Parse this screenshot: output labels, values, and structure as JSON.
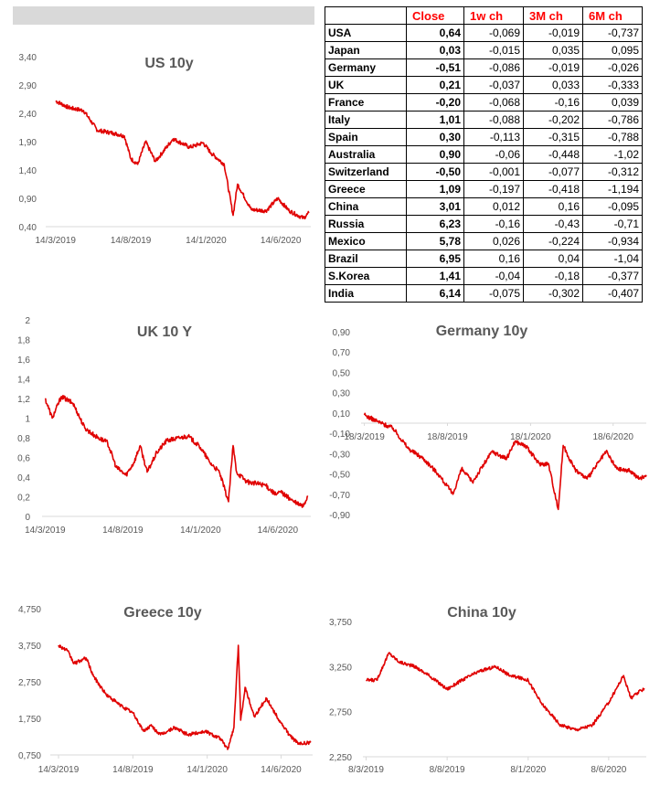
{
  "yield_table": {
    "headers": [
      "",
      "Close",
      "1w ch",
      "3M ch",
      "6M ch"
    ],
    "rows": [
      {
        "country": "USA",
        "close": "0,64",
        "w1": "-0,069",
        "m3": "-0,019",
        "m6": "-0,737"
      },
      {
        "country": "Japan",
        "close": "0,03",
        "w1": "-0,015",
        "m3": "0,035",
        "m6": "0,095"
      },
      {
        "country": "Germany",
        "close": "-0,51",
        "w1": "-0,086",
        "m3": "-0,019",
        "m6": "-0,026"
      },
      {
        "country": "UK",
        "close": "0,21",
        "w1": "-0,037",
        "m3": "0,033",
        "m6": "-0,333"
      },
      {
        "country": "France",
        "close": "-0,20",
        "w1": "-0,068",
        "m3": "-0,16",
        "m6": "0,039"
      },
      {
        "country": "Italy",
        "close": "1,01",
        "w1": "-0,088",
        "m3": "-0,202",
        "m6": "-0,786"
      },
      {
        "country": "Spain",
        "close": "0,30",
        "w1": "-0,113",
        "m3": "-0,315",
        "m6": "-0,788"
      },
      {
        "country": "Australia",
        "close": "0,90",
        "w1": "-0,06",
        "m3": "-0,448",
        "m6": "-1,02"
      },
      {
        "country": "Switzerland",
        "close": "-0,50",
        "w1": "-0,001",
        "m3": "-0,077",
        "m6": "-0,312"
      },
      {
        "country": "Greece",
        "close": "1,09",
        "w1": "-0,197",
        "m3": "-0,418",
        "m6": "-1,194"
      },
      {
        "country": "China",
        "close": "3,01",
        "w1": "0,012",
        "m3": "0,16",
        "m6": "-0,095"
      },
      {
        "country": "Russia",
        "close": "6,23",
        "w1": "-0,16",
        "m3": "-0,43",
        "m6": "-0,71"
      },
      {
        "country": "Mexico",
        "close": "5,78",
        "w1": "0,026",
        "m3": "-0,224",
        "m6": "-0,934"
      },
      {
        "country": "Brazil",
        "close": "6,95",
        "w1": "0,16",
        "m3": "0,04",
        "m6": "-1,04"
      },
      {
        "country": "S.Korea",
        "close": "1,41",
        "w1": "-0,04",
        "m3": "-0,18",
        "m6": "-0,377"
      },
      {
        "country": "India",
        "close": "6,14",
        "w1": "-0,075",
        "m3": "-0,302",
        "m6": "-0,407"
      }
    ]
  },
  "colors": {
    "line": "#e00000",
    "header_text": "#ff0000",
    "top_bar": "#d9d9d9",
    "axis": "#d9d9d9"
  },
  "chart_data": [
    {
      "id": "us",
      "type": "line",
      "title": "US 10y",
      "series": [
        {
          "color": "#e00000",
          "x": [
            "2019-03-14",
            "2019-04-10",
            "2019-05-10",
            "2019-06-07",
            "2019-07-10",
            "2019-08-01",
            "2019-08-14",
            "2019-08-28",
            "2019-09-13",
            "2019-10-03",
            "2019-11-08",
            "2019-12-12",
            "2020-01-08",
            "2020-01-24",
            "2020-02-20",
            "2020-03-09",
            "2020-03-18",
            "2020-04-15",
            "2020-05-15",
            "2020-06-08",
            "2020-07-01",
            "2020-07-30",
            "2020-08-10"
          ],
          "y": [
            2.62,
            2.5,
            2.45,
            2.1,
            2.05,
            2.0,
            1.6,
            1.5,
            1.9,
            1.55,
            1.95,
            1.8,
            1.88,
            1.7,
            1.5,
            0.6,
            1.15,
            0.7,
            0.68,
            0.9,
            0.68,
            0.55,
            0.64
          ]
        }
      ],
      "yticks": [
        "0,40",
        "0,90",
        "1,40",
        "1,90",
        "2,40",
        "2,90",
        "3,40"
      ],
      "ylim": [
        0.4,
        3.4
      ],
      "xticks": [
        {
          "label": "14/3/2019",
          "x": "2019-03-14"
        },
        {
          "label": "14/8/2019",
          "x": "2019-08-14"
        },
        {
          "label": "14/1/2020",
          "x": "2020-01-14"
        },
        {
          "label": "14/6/2020",
          "x": "2020-06-14"
        }
      ],
      "xlim": [
        "2019-02-22",
        "2020-08-14"
      ]
    },
    {
      "id": "uk",
      "type": "line",
      "title": "UK 10 Y",
      "series": [
        {
          "color": "#e00000",
          "x": [
            "2019-03-14",
            "2019-03-28",
            "2019-04-15",
            "2019-05-08",
            "2019-05-31",
            "2019-06-20",
            "2019-07-15",
            "2019-08-01",
            "2019-08-20",
            "2019-09-05",
            "2019-09-17",
            "2019-10-01",
            "2019-10-20",
            "2019-11-08",
            "2019-12-05",
            "2019-12-20",
            "2020-01-14",
            "2020-02-01",
            "2020-02-20",
            "2020-03-09",
            "2020-03-18",
            "2020-03-25",
            "2020-04-15",
            "2020-05-20",
            "2020-06-10",
            "2020-06-20",
            "2020-07-15",
            "2020-08-03",
            "2020-08-12"
          ],
          "y": [
            1.2,
            1.0,
            1.22,
            1.15,
            0.9,
            0.82,
            0.75,
            0.5,
            0.42,
            0.55,
            0.72,
            0.45,
            0.65,
            0.77,
            0.8,
            0.82,
            0.7,
            0.55,
            0.45,
            0.15,
            0.72,
            0.45,
            0.35,
            0.32,
            0.22,
            0.25,
            0.15,
            0.1,
            0.21
          ]
        }
      ],
      "yticks": [
        "0",
        "0,2",
        "0,4",
        "0,6",
        "0,8",
        "1",
        "1,2",
        "1,4",
        "1,6",
        "1,8",
        "2"
      ],
      "ylim": [
        0,
        2
      ],
      "xticks": [
        {
          "label": "14/3/2019",
          "x": "2019-03-14"
        },
        {
          "label": "14/8/2019",
          "x": "2019-08-14"
        },
        {
          "label": "14/1/2020",
          "x": "2020-01-14"
        },
        {
          "label": "14/6/2020",
          "x": "2020-06-14"
        }
      ],
      "xlim": [
        "2019-03-08",
        "2020-08-18"
      ]
    },
    {
      "id": "germany",
      "type": "line",
      "title": "Germany 10y",
      "series": [
        {
          "color": "#e00000",
          "x": [
            "2019-03-18",
            "2019-04-10",
            "2019-05-10",
            "2019-06-07",
            "2019-07-05",
            "2019-08-01",
            "2019-08-28",
            "2019-09-13",
            "2019-10-03",
            "2019-11-08",
            "2019-12-05",
            "2019-12-20",
            "2020-01-08",
            "2020-02-03",
            "2020-02-20",
            "2020-03-09",
            "2020-03-18",
            "2020-04-08",
            "2020-05-01",
            "2020-06-05",
            "2020-06-25",
            "2020-07-20",
            "2020-08-05",
            "2020-08-18"
          ],
          "y": [
            0.08,
            0.02,
            -0.05,
            -0.25,
            -0.35,
            -0.5,
            -0.7,
            -0.45,
            -0.58,
            -0.28,
            -0.35,
            -0.18,
            -0.22,
            -0.4,
            -0.4,
            -0.85,
            -0.22,
            -0.45,
            -0.55,
            -0.28,
            -0.45,
            -0.47,
            -0.55,
            -0.51
          ]
        }
      ],
      "yticks": [
        "-0,90",
        "-0,70",
        "-0,50",
        "-0,30",
        "-0,10",
        "0,10",
        "0,30",
        "0,50",
        "0,70",
        "0,90"
      ],
      "ylim": [
        -0.9,
        0.9
      ],
      "xticks": [
        {
          "label": "18/3/2019",
          "x": "2019-03-18"
        },
        {
          "label": "18/8/2019",
          "x": "2019-08-18"
        },
        {
          "label": "18/1/2020",
          "x": "2020-01-18"
        },
        {
          "label": "18/6/2020",
          "x": "2020-06-18"
        }
      ],
      "xlim": [
        "2019-03-12",
        "2020-08-18"
      ]
    },
    {
      "id": "greece",
      "type": "line",
      "title": "Greece 10y",
      "series": [
        {
          "color": "#e00000",
          "x": [
            "2019-03-14",
            "2019-04-01",
            "2019-04-15",
            "2019-05-10",
            "2019-05-25",
            "2019-06-20",
            "2019-07-20",
            "2019-08-14",
            "2019-09-05",
            "2019-09-20",
            "2019-10-10",
            "2019-11-08",
            "2019-12-05",
            "2020-01-10",
            "2020-02-10",
            "2020-02-25",
            "2020-03-09",
            "2020-03-18",
            "2020-03-23",
            "2020-04-01",
            "2020-04-20",
            "2020-05-15",
            "2020-06-10",
            "2020-07-01",
            "2020-07-20",
            "2020-08-14"
          ],
          "y": [
            3.75,
            3.6,
            3.25,
            3.4,
            2.9,
            2.4,
            2.1,
            1.9,
            1.4,
            1.55,
            1.3,
            1.5,
            1.3,
            1.4,
            1.2,
            0.9,
            1.5,
            3.75,
            1.7,
            2.6,
            1.8,
            2.3,
            1.7,
            1.3,
            1.05,
            1.09
          ]
        }
      ],
      "yticks": [
        "0,750",
        "1,750",
        "2,750",
        "3,750",
        "4,750"
      ],
      "ylim": [
        0.75,
        4.75
      ],
      "xticks": [
        {
          "label": "14/3/2019",
          "x": "2019-03-14"
        },
        {
          "label": "14/8/2019",
          "x": "2019-08-14"
        },
        {
          "label": "14/1/2020",
          "x": "2020-01-14"
        },
        {
          "label": "14/6/2020",
          "x": "2020-06-14"
        }
      ],
      "xlim": [
        "2019-02-25",
        "2020-08-18"
      ]
    },
    {
      "id": "china",
      "type": "line",
      "title": "China 10y",
      "series": [
        {
          "color": "#e00000",
          "x": [
            "2019-03-08",
            "2019-03-28",
            "2019-04-20",
            "2019-05-10",
            "2019-06-08",
            "2019-07-05",
            "2019-08-08",
            "2019-09-05",
            "2019-10-08",
            "2019-11-08",
            "2019-12-05",
            "2020-01-08",
            "2020-02-01",
            "2020-03-09",
            "2020-04-08",
            "2020-05-08",
            "2020-06-08",
            "2020-07-06",
            "2020-07-20",
            "2020-08-14"
          ],
          "y": [
            3.1,
            3.1,
            3.4,
            3.3,
            3.25,
            3.15,
            3.0,
            3.1,
            3.2,
            3.25,
            3.15,
            3.1,
            2.85,
            2.6,
            2.55,
            2.6,
            2.85,
            3.15,
            2.9,
            3.01
          ]
        }
      ],
      "yticks": [
        "2,250",
        "2,750",
        "3,250",
        "3,750"
      ],
      "ylim": [
        2.25,
        3.75
      ],
      "xticks": [
        {
          "label": "8/3/2019",
          "x": "2019-03-08"
        },
        {
          "label": "8/8/2019",
          "x": "2019-08-08"
        },
        {
          "label": "8/1/2020",
          "x": "2020-01-08"
        },
        {
          "label": "8/6/2020",
          "x": "2020-06-08"
        }
      ],
      "xlim": [
        "2019-03-02",
        "2020-08-18"
      ]
    }
  ]
}
